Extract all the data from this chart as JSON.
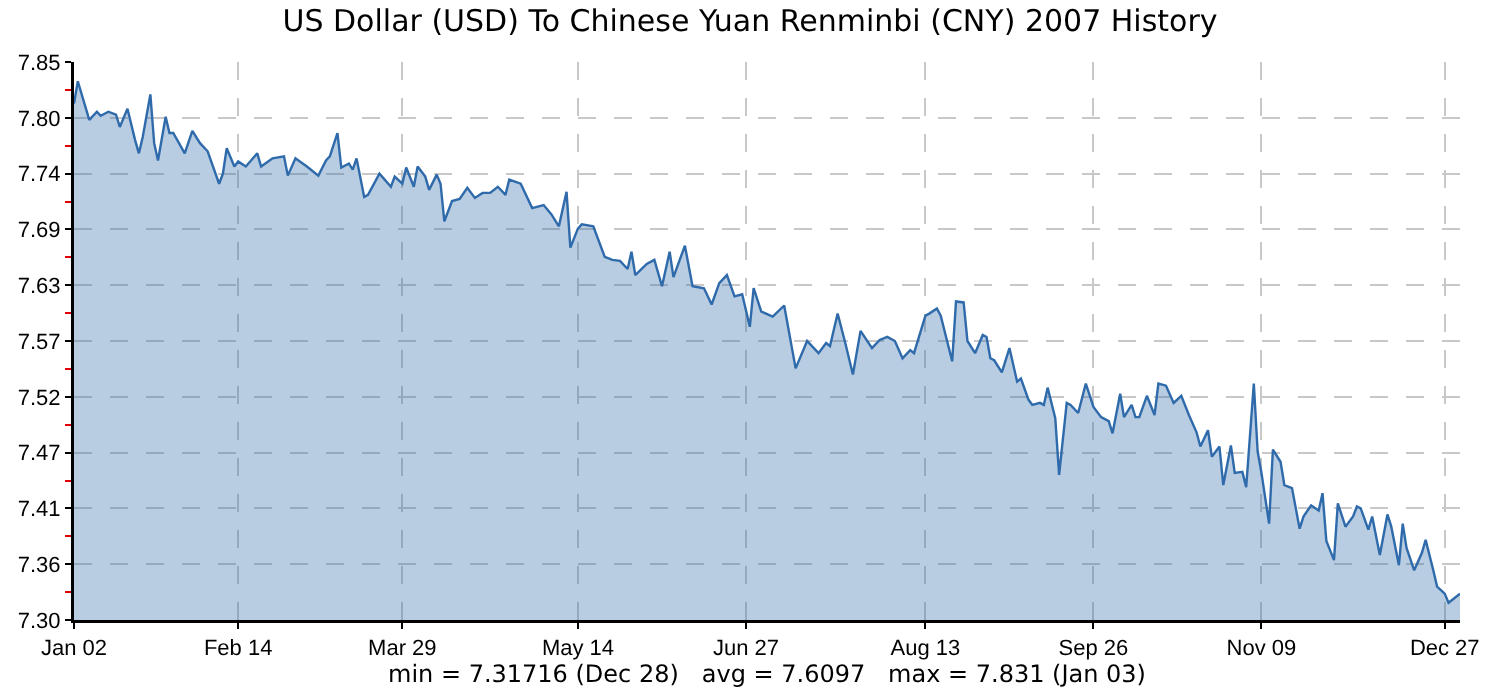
{
  "chart_data": {
    "type": "area",
    "title": "US Dollar (USD) To Chinese Yuan Renminbi (CNY) 2007 History",
    "annotations": [
      "min = 7.31716 (Dec 28)   avg = 7.6097   max = 7.831 (Jan 03)"
    ],
    "x": [
      "2007-01-02",
      "2007-01-03",
      "2007-01-06",
      "2007-01-08",
      "2007-01-09",
      "2007-01-11",
      "2007-01-13",
      "2007-01-14",
      "2007-01-16",
      "2007-01-18",
      "2007-01-19",
      "2007-01-20",
      "2007-01-22",
      "2007-01-23",
      "2007-01-24",
      "2007-01-26",
      "2007-01-27",
      "2007-01-28",
      "2007-01-31",
      "2007-02-02",
      "2007-02-04",
      "2007-02-06",
      "2007-02-09",
      "2007-02-10",
      "2007-02-11",
      "2007-02-13",
      "2007-02-14",
      "2007-02-16",
      "2007-02-19",
      "2007-02-20",
      "2007-02-23",
      "2007-02-26",
      "2007-02-27",
      "2007-03-01",
      "2007-03-04",
      "2007-03-07",
      "2007-03-09",
      "2007-03-10",
      "2007-03-12",
      "2007-03-13",
      "2007-03-15",
      "2007-03-16",
      "2007-03-17",
      "2007-03-19",
      "2007-03-20",
      "2007-03-23",
      "2007-03-26",
      "2007-03-27",
      "2007-03-29",
      "2007-03-30",
      "2007-04-01",
      "2007-04-02",
      "2007-04-04",
      "2007-04-05",
      "2007-04-07",
      "2007-04-08",
      "2007-04-09",
      "2007-04-11",
      "2007-04-13",
      "2007-04-15",
      "2007-04-17",
      "2007-04-19",
      "2007-04-21",
      "2007-04-23",
      "2007-04-25",
      "2007-04-26",
      "2007-04-29",
      "2007-05-02",
      "2007-05-05",
      "2007-05-07",
      "2007-05-09",
      "2007-05-11",
      "2007-05-12",
      "2007-05-14",
      "2007-05-15",
      "2007-05-18",
      "2007-05-21",
      "2007-05-23",
      "2007-05-25",
      "2007-05-27",
      "2007-05-28",
      "2007-05-29",
      "2007-06-01",
      "2007-06-03",
      "2007-06-05",
      "2007-06-07",
      "2007-06-08",
      "2007-06-11",
      "2007-06-13",
      "2007-06-16",
      "2007-06-18",
      "2007-06-20",
      "2007-06-22",
      "2007-06-24",
      "2007-06-26",
      "2007-06-28",
      "2007-06-29",
      "2007-07-01",
      "2007-07-04",
      "2007-07-07",
      "2007-07-10",
      "2007-07-13",
      "2007-07-16",
      "2007-07-18",
      "2007-07-19",
      "2007-07-21",
      "2007-07-23",
      "2007-07-25",
      "2007-07-27",
      "2007-07-30",
      "2007-08-01",
      "2007-08-03",
      "2007-08-05",
      "2007-08-07",
      "2007-08-09",
      "2007-08-10",
      "2007-08-13",
      "2007-08-14",
      "2007-08-16",
      "2007-08-17",
      "2007-08-20",
      "2007-08-21",
      "2007-08-23",
      "2007-08-24",
      "2007-08-26",
      "2007-08-28",
      "2007-08-29",
      "2007-08-30",
      "2007-08-31",
      "2007-09-02",
      "2007-09-04",
      "2007-09-06",
      "2007-09-07",
      "2007-09-09",
      "2007-09-10",
      "2007-09-12",
      "2007-09-13",
      "2007-09-14",
      "2007-09-16",
      "2007-09-17",
      "2007-09-19",
      "2007-09-20",
      "2007-09-22",
      "2007-09-24",
      "2007-09-26",
      "2007-09-28",
      "2007-09-30",
      "2007-10-01",
      "2007-10-03",
      "2007-10-04",
      "2007-10-06",
      "2007-10-07",
      "2007-10-08",
      "2007-10-10",
      "2007-10-12",
      "2007-10-13",
      "2007-10-15",
      "2007-10-17",
      "2007-10-19",
      "2007-10-21",
      "2007-10-23",
      "2007-10-24",
      "2007-10-26",
      "2007-10-27",
      "2007-10-29",
      "2007-10-30",
      "2007-11-01",
      "2007-11-02",
      "2007-11-04",
      "2007-11-05",
      "2007-11-07",
      "2007-11-08",
      "2007-11-09",
      "2007-11-11",
      "2007-11-12",
      "2007-11-14",
      "2007-11-15",
      "2007-11-17",
      "2007-11-19",
      "2007-11-20",
      "2007-11-22",
      "2007-11-24",
      "2007-11-25",
      "2007-11-26",
      "2007-11-28",
      "2007-11-29",
      "2007-12-01",
      "2007-12-03",
      "2007-12-04",
      "2007-12-05",
      "2007-12-07",
      "2007-12-08",
      "2007-12-10",
      "2007-12-12",
      "2007-12-13",
      "2007-12-15",
      "2007-12-16",
      "2007-12-17",
      "2007-12-19",
      "2007-12-21",
      "2007-12-22",
      "2007-12-24",
      "2007-12-25",
      "2007-12-27",
      "2007-12-28",
      "2007-12-31"
    ],
    "series": [
      {
        "color": "#2f6aaa",
        "values": [
          7.809,
          7.831,
          7.793,
          7.801,
          7.797,
          7.801,
          7.798,
          7.786,
          7.804,
          7.773,
          7.76,
          7.776,
          7.818,
          7.77,
          7.753,
          7.796,
          7.78,
          7.78,
          7.76,
          7.782,
          7.77,
          7.762,
          7.73,
          7.74,
          7.765,
          7.747,
          7.752,
          7.747,
          7.76,
          7.747,
          7.755,
          7.757,
          7.738,
          7.755,
          7.747,
          7.738,
          7.753,
          7.757,
          7.78,
          7.746,
          7.75,
          7.744,
          7.755,
          7.717,
          7.719,
          7.74,
          7.727,
          7.737,
          7.73,
          7.746,
          7.727,
          7.747,
          7.737,
          7.724,
          7.739,
          7.73,
          7.693,
          7.713,
          7.715,
          7.726,
          7.716,
          7.721,
          7.721,
          7.727,
          7.719,
          7.734,
          7.73,
          7.706,
          7.709,
          7.7,
          7.688,
          7.722,
          7.667,
          7.686,
          7.69,
          7.688,
          7.658,
          7.655,
          7.654,
          7.646,
          7.663,
          7.64,
          7.651,
          7.655,
          7.629,
          7.663,
          7.638,
          7.669,
          7.629,
          7.627,
          7.611,
          7.632,
          7.64,
          7.619,
          7.621,
          7.589,
          7.627,
          7.604,
          7.599,
          7.61,
          7.548,
          7.575,
          7.563,
          7.573,
          7.57,
          7.602,
          7.573,
          7.542,
          7.585,
          7.568,
          7.576,
          7.579,
          7.575,
          7.558,
          7.566,
          7.563,
          7.6,
          7.602,
          7.607,
          7.6,
          7.555,
          7.614,
          7.613,
          7.575,
          7.563,
          7.581,
          7.579,
          7.558,
          7.556,
          7.544,
          7.568,
          7.535,
          7.538,
          7.517,
          7.512,
          7.514,
          7.512,
          7.529,
          7.499,
          7.443,
          7.514,
          7.512,
          7.504,
          7.533,
          7.51,
          7.5,
          7.496,
          7.484,
          7.523,
          7.5,
          7.512,
          7.5,
          7.5,
          7.521,
          7.502,
          7.533,
          7.531,
          7.514,
          7.521,
          7.502,
          7.485,
          7.471,
          7.487,
          7.461,
          7.471,
          7.433,
          7.472,
          7.445,
          7.446,
          7.431,
          7.533,
          7.466,
          7.445,
          7.395,
          7.468,
          7.456,
          7.433,
          7.43,
          7.39,
          7.402,
          7.413,
          7.408,
          7.425,
          7.378,
          7.359,
          7.415,
          7.392,
          7.402,
          7.412,
          7.41,
          7.389,
          7.402,
          7.364,
          7.404,
          7.392,
          7.354,
          7.395,
          7.371,
          7.349,
          7.366,
          7.379,
          7.349,
          7.333,
          7.326,
          7.317,
          7.326
        ]
      }
    ],
    "xlim": [
      "2007-01-02",
      "2007-12-31"
    ],
    "xticks": [
      {
        "value": "2007-01-02",
        "label": "Jan 02"
      },
      {
        "value": "2007-02-14",
        "label": "Feb 14"
      },
      {
        "value": "2007-03-29",
        "label": "Mar 29"
      },
      {
        "value": "2007-05-14",
        "label": "May 14"
      },
      {
        "value": "2007-06-27",
        "label": "Jun 27"
      },
      {
        "value": "2007-08-13",
        "label": "Aug 13"
      },
      {
        "value": "2007-09-26",
        "label": "Sep 26"
      },
      {
        "value": "2007-11-09",
        "label": "Nov 09"
      },
      {
        "value": "2007-12-27",
        "label": "Dec 27"
      }
    ],
    "ylim": [
      7.3,
      7.85
    ],
    "yticks": [
      {
        "value": 7.3,
        "label": "7.30"
      },
      {
        "value": 7.355,
        "label": "7.36"
      },
      {
        "value": 7.41,
        "label": "7.41"
      },
      {
        "value": 7.465,
        "label": "7.47"
      },
      {
        "value": 7.52,
        "label": "7.52"
      },
      {
        "value": 7.575,
        "label": "7.57"
      },
      {
        "value": 7.63,
        "label": "7.63"
      },
      {
        "value": 7.685,
        "label": "7.69"
      },
      {
        "value": 7.74,
        "label": "7.74"
      },
      {
        "value": 7.795,
        "label": "7.80"
      },
      {
        "value": 7.85,
        "label": "7.85"
      }
    ],
    "grid": true
  }
}
